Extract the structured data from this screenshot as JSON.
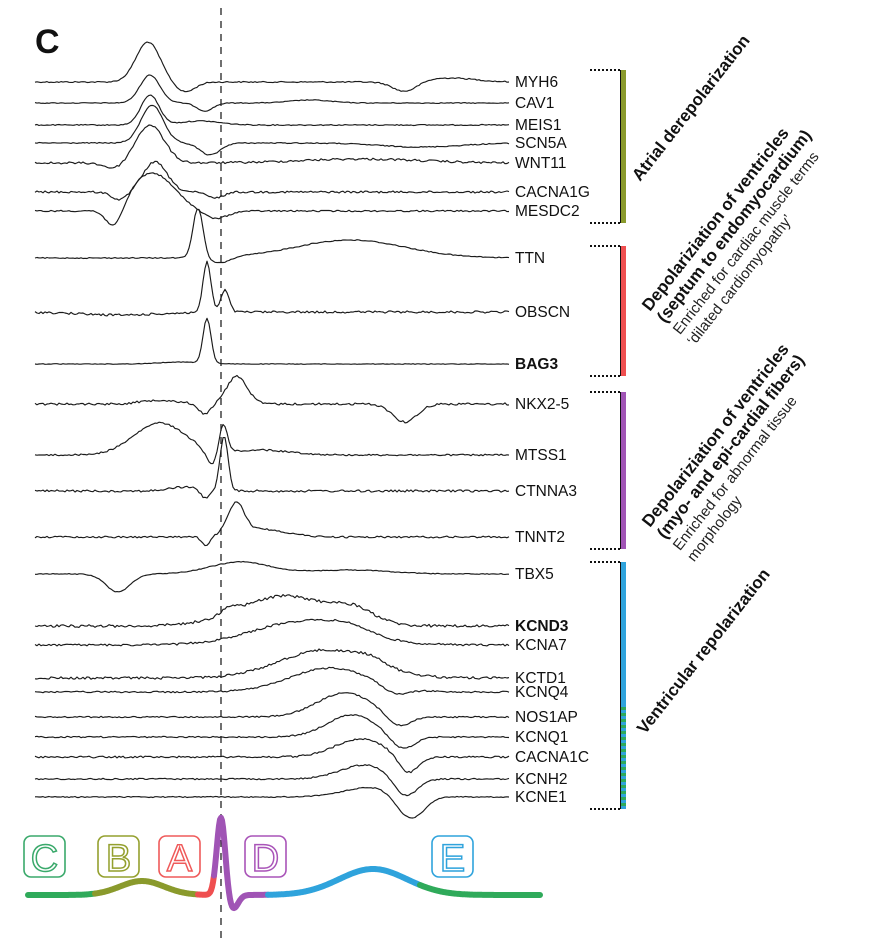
{
  "panel_label": "C",
  "genes": [
    {
      "name": "MYH6",
      "bold": false
    },
    {
      "name": "CAV1",
      "bold": false
    },
    {
      "name": "MEIS1",
      "bold": false
    },
    {
      "name": "SCN5A",
      "bold": false
    },
    {
      "name": "WNT11",
      "bold": false
    },
    {
      "name": "CACNA1G",
      "bold": false
    },
    {
      "name": "MESDC2",
      "bold": false
    },
    {
      "name": "TTN",
      "bold": false
    },
    {
      "name": "OBSCN",
      "bold": false
    },
    {
      "name": "BAG3",
      "bold": true
    },
    {
      "name": "NKX2-5",
      "bold": false
    },
    {
      "name": "MTSS1",
      "bold": false
    },
    {
      "name": "CTNNA3",
      "bold": false
    },
    {
      "name": "TNNT2",
      "bold": false
    },
    {
      "name": "TBX5",
      "bold": false
    },
    {
      "name": "KCND3",
      "bold": true
    },
    {
      "name": "KCNA7",
      "bold": false
    },
    {
      "name": "KCTD1",
      "bold": false
    },
    {
      "name": "KCNQ4",
      "bold": false
    },
    {
      "name": "NOS1AP",
      "bold": false
    },
    {
      "name": "KCNQ1",
      "bold": false
    },
    {
      "name": "CACNA1C",
      "bold": false
    },
    {
      "name": "KCNH2",
      "bold": false
    },
    {
      "name": "KCNE1",
      "bold": false
    }
  ],
  "groups": [
    {
      "title_lines": [
        "Atrial derepolarization"
      ],
      "subtitle_lines": [],
      "color": "#8a9a2c"
    },
    {
      "title_lines": [
        "Depolariziation of ventricles",
        "(septum to endomyocardium)"
      ],
      "subtitle_lines": [
        "Enriched for cardiac muscle terms",
        "‘dilated cardiomyopathy’"
      ],
      "color": "#ef4f50"
    },
    {
      "title_lines": [
        "Depolariziation of ventricles",
        "(myo- and epi-cardial fibers)"
      ],
      "subtitle_lines": [
        "Enriched for abnormal tissue",
        "morphology"
      ],
      "color": "#a054b5"
    },
    {
      "title_lines": [
        "Ventricular repolarization"
      ],
      "subtitle_lines": [],
      "color": "#2fa3dc"
    }
  ],
  "phases": [
    {
      "letter": "C",
      "color": "#3aa96b"
    },
    {
      "letter": "B",
      "color": "#94a02e"
    },
    {
      "letter": "A",
      "color": "#ef5a5a"
    },
    {
      "letter": "D",
      "color": "#a954b8"
    },
    {
      "letter": "E",
      "color": "#2fa3dc"
    }
  ],
  "colors": {
    "green": "#2faa5a",
    "olive": "#8a9a2c",
    "red": "#ef4f50",
    "purple": "#a054b5",
    "blue": "#2fa3dc"
  }
}
